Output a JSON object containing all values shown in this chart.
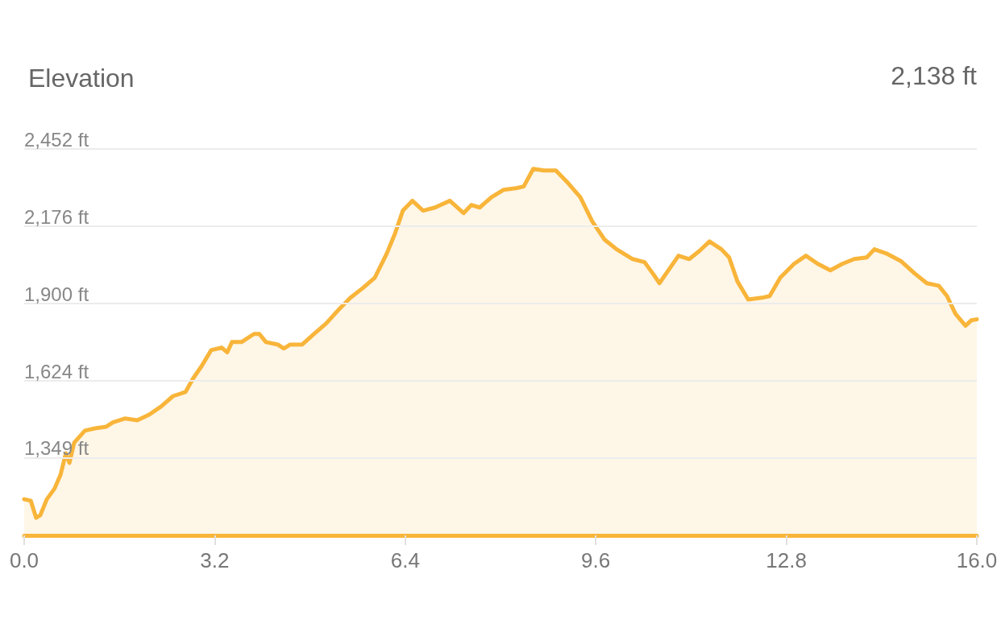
{
  "chart_data": {
    "type": "area",
    "title": "Elevation",
    "annotations": [
      "2,138 ft"
    ],
    "x": [
      0,
      0.11,
      0.2,
      0.27,
      0.38,
      0.51,
      0.61,
      0.7,
      0.76,
      0.84,
      1.02,
      1.19,
      1.38,
      1.49,
      1.69,
      1.9,
      2.1,
      2.3,
      2.5,
      2.71,
      2.84,
      2.98,
      3.14,
      3.32,
      3.41,
      3.49,
      3.65,
      3.86,
      3.95,
      4.06,
      4.26,
      4.36,
      4.47,
      4.67,
      4.87,
      5.07,
      5.28,
      5.48,
      5.69,
      5.89,
      6.09,
      6.23,
      6.36,
      6.52,
      6.7,
      6.9,
      7.15,
      7.38,
      7.51,
      7.65,
      7.85,
      8.05,
      8.26,
      8.39,
      8.55,
      8.73,
      8.93,
      9.14,
      9.34,
      9.54,
      9.75,
      9.95,
      10.22,
      10.42,
      10.56,
      10.67,
      10.83,
      10.99,
      11.17,
      11.34,
      11.51,
      11.71,
      11.84,
      11.98,
      12.16,
      12.39,
      12.52,
      12.7,
      12.93,
      13.13,
      13.33,
      13.54,
      13.74,
      13.94,
      14.15,
      14.28,
      14.48,
      14.73,
      14.96,
      15.16,
      15.36,
      15.5,
      15.64,
      15.81,
      15.91,
      16
    ],
    "series": [
      {
        "color": "#f8b53a",
        "values": [
          1202,
          1197,
          1136,
          1145,
          1202,
          1240,
          1289,
          1366,
          1332,
          1404,
          1447,
          1455,
          1461,
          1476,
          1490,
          1484,
          1504,
          1533,
          1570,
          1585,
          1634,
          1677,
          1734,
          1743,
          1726,
          1763,
          1763,
          1792,
          1792,
          1763,
          1754,
          1740,
          1754,
          1754,
          1792,
          1829,
          1878,
          1921,
          1956,
          1993,
          2079,
          2151,
          2232,
          2267,
          2232,
          2243,
          2267,
          2223,
          2252,
          2243,
          2280,
          2306,
          2312,
          2318,
          2381,
          2375,
          2375,
          2329,
          2280,
          2194,
          2128,
          2094,
          2059,
          2048,
          2007,
          1973,
          2022,
          2071,
          2059,
          2088,
          2122,
          2094,
          2065,
          1979,
          1915,
          1921,
          1927,
          1993,
          2042,
          2071,
          2042,
          2019,
          2042,
          2059,
          2065,
          2094,
          2079,
          2051,
          2007,
          1973,
          1964,
          1927,
          1864,
          1821,
          1841,
          1844
        ]
      }
    ],
    "xlim": [
      0,
      16
    ],
    "xticks": [
      {
        "value": 0,
        "label": "0.0"
      },
      {
        "value": 3.2,
        "label": "3.2"
      },
      {
        "value": 6.4,
        "label": "6.4"
      },
      {
        "value": 9.6,
        "label": "9.6"
      },
      {
        "value": 12.8,
        "label": "12.8"
      },
      {
        "value": 16,
        "label": "16.0"
      }
    ],
    "ylim": [
      1073,
      2452
    ],
    "yticks": [
      {
        "value": 1349,
        "label": "1,349 ft"
      },
      {
        "value": 1624,
        "label": "1,624 ft"
      },
      {
        "value": 1900,
        "label": "1,900 ft"
      },
      {
        "value": 2176,
        "label": "2,176 ft"
      },
      {
        "value": 2452,
        "label": "2,452 ft"
      }
    ],
    "grid": "y",
    "marker": "none",
    "line_style": "solid"
  }
}
